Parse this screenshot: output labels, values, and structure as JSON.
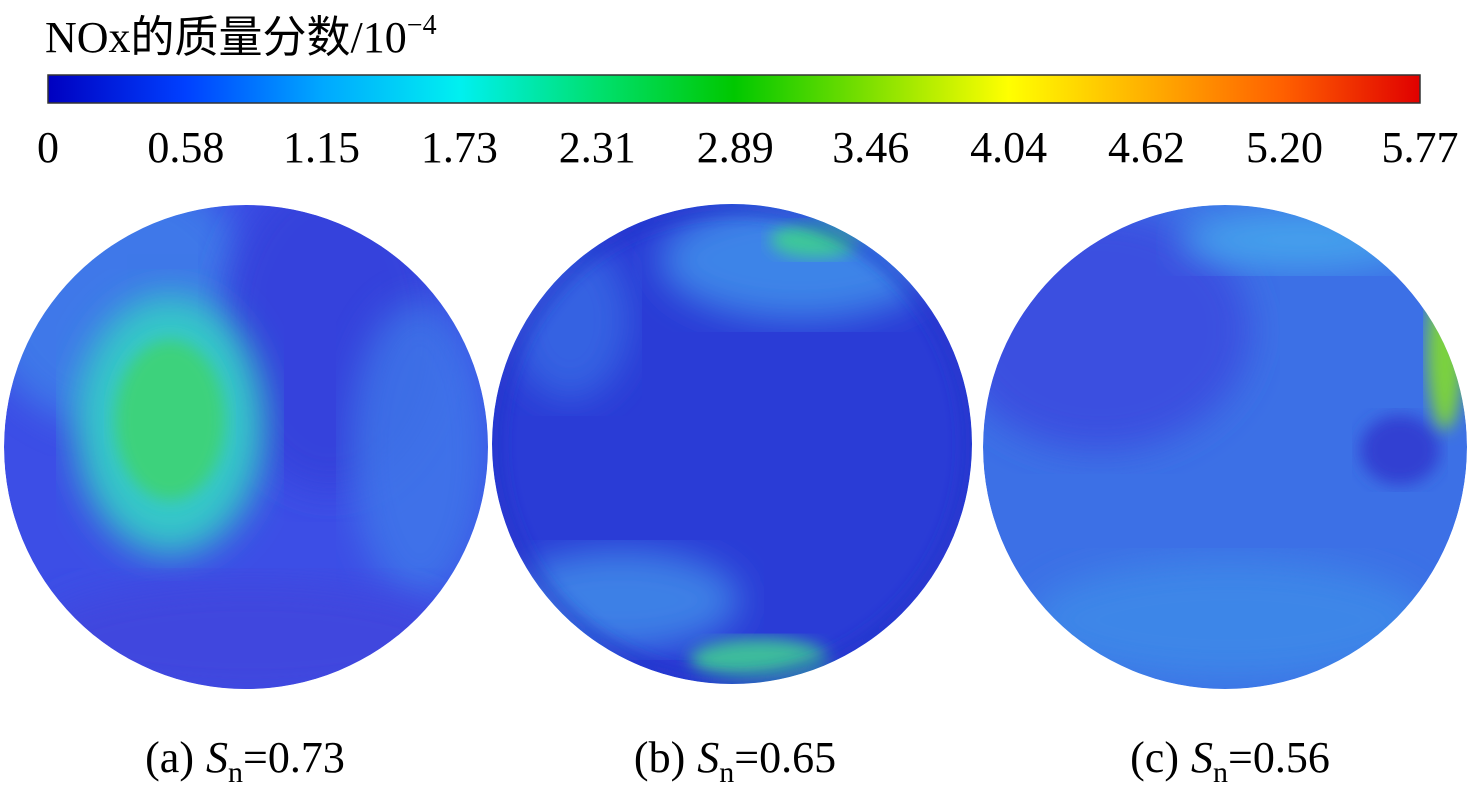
{
  "chart_data": {
    "type": "colormap",
    "title": "NOx的质量分数/10",
    "title_superscript": "−4",
    "colorbar": {
      "lim": [
        0,
        5.77
      ],
      "ticks": [
        0,
        0.58,
        1.15,
        1.73,
        2.31,
        2.89,
        3.46,
        4.04,
        4.62,
        {
          "value": 5.2,
          "label": "5.20"
        },
        5.77
      ],
      "colors": [
        "#0000c0",
        "#0040ff",
        "#00a8ff",
        "#00f0f0",
        "#00e070",
        "#00c800",
        "#80e000",
        "#ffff00",
        "#ffb000",
        "#ff6000",
        "#e00000"
      ]
    },
    "panels": [
      {
        "label": "(a)",
        "symbol": "S",
        "subscript": "n",
        "relation": "=",
        "value": 0.73
      },
      {
        "label": "(b)",
        "symbol": "S",
        "subscript": "n",
        "relation": "=",
        "value": 0.65
      },
      {
        "label": "(c)",
        "symbol": "S",
        "subscript": "n",
        "relation": "=",
        "value": 0.56
      }
    ]
  }
}
